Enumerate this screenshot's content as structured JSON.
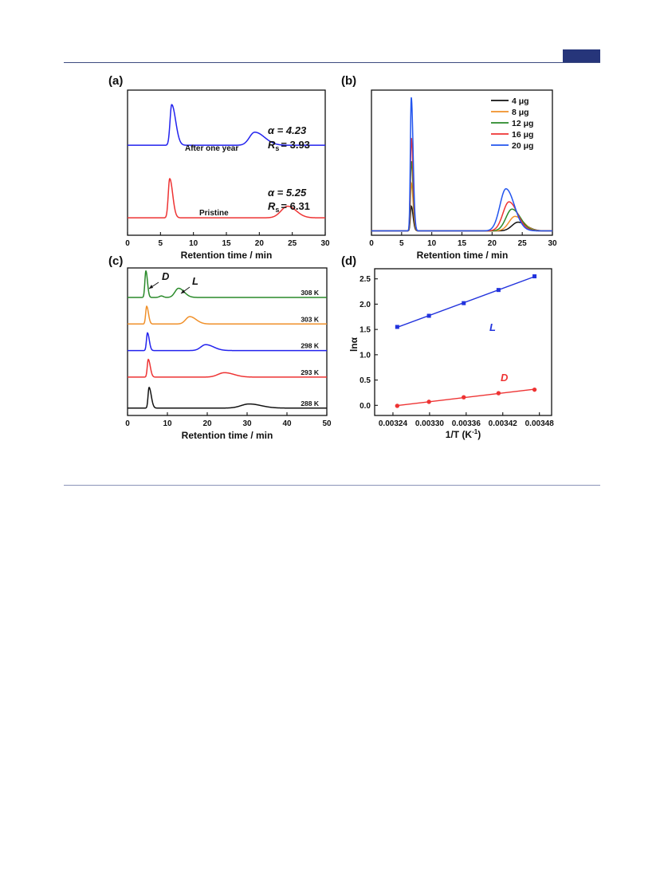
{
  "theme": {
    "header_rule_color": "#3c4a80",
    "header_box_color": "#26357a",
    "footer_rule_color": "#8a93b8"
  },
  "chart_data": [
    {
      "panel": "(a)",
      "type": "line",
      "xlabel": "Retention time / min",
      "ylabel": "",
      "xlim": [
        0,
        30
      ],
      "xticks": [
        0,
        5,
        10,
        15,
        20,
        25,
        30
      ],
      "series": [
        {
          "name": "After one year",
          "color": "#2222ee",
          "baseline": 0.62,
          "peaks": [
            {
              "center": 6.7,
              "height": 0.28,
              "sigma_left": 0.25,
              "sigma_right": 0.6
            },
            {
              "center": 19.3,
              "height": 0.09,
              "sigma_left": 0.8,
              "sigma_right": 1.5
            }
          ],
          "label": "After one year",
          "alpha_text": "α = 4.23",
          "rs_label": "R",
          "rs_sub": "s",
          "rs_value": "= 3.93"
        },
        {
          "name": "Pristine",
          "color": "#ee3333",
          "baseline": 0.12,
          "peaks": [
            {
              "center": 6.4,
              "height": 0.27,
              "sigma_left": 0.22,
              "sigma_right": 0.45
            },
            {
              "center": 24.3,
              "height": 0.08,
              "sigma_left": 1.0,
              "sigma_right": 1.3
            }
          ],
          "label": "Pristine",
          "alpha_text": "α = 5.25",
          "rs_label": "R",
          "rs_sub": "s",
          "rs_value": "= 6.31"
        }
      ]
    },
    {
      "panel": "(b)",
      "type": "line",
      "xlabel": "Retention time / min",
      "ylabel": "",
      "xlim": [
        0,
        30
      ],
      "xticks": [
        0,
        5,
        10,
        15,
        20,
        25,
        30
      ],
      "legend": "top-right",
      "series": [
        {
          "name": "4 μg",
          "color": "#111111",
          "peaks": [
            {
              "center": 6.6,
              "height": 0.17,
              "sigma_left": 0.15,
              "sigma_right": 0.3
            },
            {
              "center": 24.3,
              "height": 0.06,
              "sigma_left": 1.0,
              "sigma_right": 1.4
            }
          ]
        },
        {
          "name": "8 μg",
          "color": "#f0902a",
          "peaks": [
            {
              "center": 6.6,
              "height": 0.33,
              "sigma_left": 0.15,
              "sigma_right": 0.3
            },
            {
              "center": 23.8,
              "height": 0.1,
              "sigma_left": 1.0,
              "sigma_right": 1.4
            }
          ]
        },
        {
          "name": "12 μg",
          "color": "#2a8a2a",
          "peaks": [
            {
              "center": 6.6,
              "height": 0.48,
              "sigma_left": 0.15,
              "sigma_right": 0.3
            },
            {
              "center": 23.3,
              "height": 0.15,
              "sigma_left": 1.0,
              "sigma_right": 1.4
            }
          ]
        },
        {
          "name": "16 μg",
          "color": "#ee3333",
          "peaks": [
            {
              "center": 6.6,
              "height": 0.64,
              "sigma_left": 0.15,
              "sigma_right": 0.3
            },
            {
              "center": 22.8,
              "height": 0.2,
              "sigma_left": 1.0,
              "sigma_right": 1.4
            }
          ]
        },
        {
          "name": "20 μg",
          "color": "#2255ee",
          "peaks": [
            {
              "center": 6.6,
              "height": 0.92,
              "sigma_left": 0.15,
              "sigma_right": 0.3
            },
            {
              "center": 22.3,
              "height": 0.29,
              "sigma_left": 1.0,
              "sigma_right": 1.4
            }
          ]
        }
      ]
    },
    {
      "panel": "(c)",
      "type": "line",
      "xlabel": "Retention time / min",
      "ylabel": "",
      "xlim": [
        0,
        50
      ],
      "xticks": [
        0,
        10,
        20,
        30,
        40,
        50
      ],
      "annotations": {
        "d_label": "D",
        "l_label": "L"
      },
      "series": [
        {
          "name": "308 K",
          "color": "#2a8a2a",
          "baseline": 0.8,
          "peaks": [
            {
              "center": 4.6,
              "height": 0.18,
              "sigma_left": 0.25,
              "sigma_right": 0.4
            },
            {
              "center": 8.5,
              "height": 0.01,
              "sigma_left": 0.5,
              "sigma_right": 0.5
            },
            {
              "center": 12.8,
              "height": 0.062,
              "sigma_left": 0.9,
              "sigma_right": 1.4
            }
          ]
        },
        {
          "name": "303 K",
          "color": "#f0902a",
          "baseline": 0.62,
          "peaks": [
            {
              "center": 4.8,
              "height": 0.12,
              "sigma_left": 0.25,
              "sigma_right": 0.45
            },
            {
              "center": 15.6,
              "height": 0.05,
              "sigma_left": 1.0,
              "sigma_right": 1.6
            }
          ]
        },
        {
          "name": "298 K",
          "color": "#2222ee",
          "baseline": 0.44,
          "peaks": [
            {
              "center": 5.0,
              "height": 0.12,
              "sigma_left": 0.25,
              "sigma_right": 0.45
            },
            {
              "center": 19.6,
              "height": 0.04,
              "sigma_left": 1.2,
              "sigma_right": 2.0
            }
          ]
        },
        {
          "name": "293 K",
          "color": "#ee3333",
          "baseline": 0.26,
          "peaks": [
            {
              "center": 5.2,
              "height": 0.12,
              "sigma_left": 0.25,
              "sigma_right": 0.5
            },
            {
              "center": 24.3,
              "height": 0.03,
              "sigma_left": 1.6,
              "sigma_right": 2.4
            }
          ]
        },
        {
          "name": "288 K",
          "color": "#111111",
          "baseline": 0.05,
          "peaks": [
            {
              "center": 5.4,
              "height": 0.14,
              "sigma_left": 0.25,
              "sigma_right": 0.55
            },
            {
              "center": 30.5,
              "height": 0.028,
              "sigma_left": 2.0,
              "sigma_right": 3.0
            }
          ]
        }
      ]
    },
    {
      "panel": "(d)",
      "type": "scatter",
      "xlabel_main": "1/T (K",
      "xlabel_sup": "-1",
      "xlabel_tail": ")",
      "ylabel": "lnα",
      "xlim": [
        0.00321,
        0.0035
      ],
      "ylim": [
        -0.2,
        2.7
      ],
      "xticks": [
        "0.00324",
        "0.00330",
        "0.00336",
        "0.00342",
        "0.00348"
      ],
      "xtick_values": [
        0.00324,
        0.0033,
        0.00336,
        0.00342,
        0.00348
      ],
      "yticks": [
        "0.0",
        "0.5",
        "1.0",
        "1.5",
        "2.0",
        "2.5"
      ],
      "ytick_values": [
        0,
        0.5,
        1.0,
        1.5,
        2.0,
        2.5
      ],
      "series": [
        {
          "name": "L",
          "color": "#2233dd",
          "marker": "square",
          "x": [
            0.003247,
            0.003299,
            0.003356,
            0.003413,
            0.003472
          ],
          "y": [
            1.55,
            1.77,
            2.02,
            2.28,
            2.55
          ]
        },
        {
          "name": "D",
          "color": "#ee3333",
          "marker": "circle",
          "x": [
            0.003247,
            0.003299,
            0.003356,
            0.003413,
            0.003472
          ],
          "y": [
            -0.01,
            0.07,
            0.16,
            0.24,
            0.31
          ]
        }
      ]
    }
  ]
}
